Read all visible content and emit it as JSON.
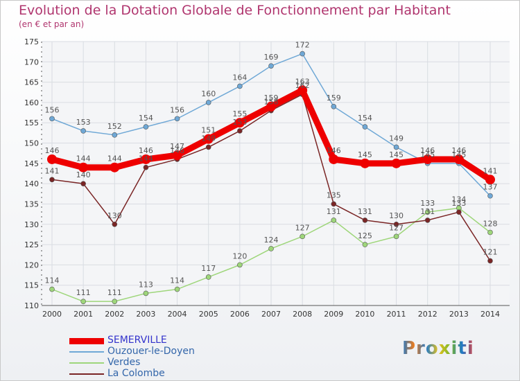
{
  "header": {
    "title": "Evolution de la Dotation Globale de Fonctionnement par Habitant",
    "subtitle": "(en € et par an)"
  },
  "logo": {
    "text": "Proxiti"
  },
  "chart_data": {
    "type": "line",
    "title": "Evolution de la Dotation Globale de Fonctionnement par Habitant",
    "subtitle": "(en € et par an)",
    "x": [
      2000,
      2001,
      2002,
      2003,
      2004,
      2005,
      2006,
      2007,
      2008,
      2009,
      2010,
      2011,
      2012,
      2013,
      2014
    ],
    "ylim": [
      110,
      175
    ],
    "yticks": [
      110,
      115,
      120,
      125,
      130,
      135,
      140,
      145,
      150,
      155,
      160,
      165,
      170,
      175
    ],
    "grid": true,
    "legend_position": "bottom-left",
    "series": [
      {
        "name": "SEMERVILLE",
        "color": "#ee0000",
        "label_color": "#3333cc",
        "values": [
          146,
          144,
          144,
          146,
          147,
          151,
          155,
          159,
          163,
          146,
          145,
          145,
          146,
          146,
          141
        ]
      },
      {
        "name": "Ouzouer-le-Doyen",
        "color": "#6fa8d6",
        "label_color": "#3366aa",
        "values": [
          156,
          153,
          152,
          154,
          156,
          160,
          164,
          169,
          172,
          159,
          154,
          149,
          145,
          145,
          137
        ]
      },
      {
        "name": "Verdes",
        "color": "#9ed67a",
        "label_color": "#3366aa",
        "values": [
          114,
          111,
          111,
          113,
          114,
          117,
          120,
          124,
          127,
          131,
          125,
          127,
          133,
          134,
          128
        ]
      },
      {
        "name": "La Colombe",
        "color": "#7a2525",
        "label_color": "#3366aa",
        "values": [
          141,
          140,
          130,
          144,
          146,
          149,
          153,
          158,
          162,
          135,
          131,
          130,
          131,
          133,
          121
        ]
      }
    ]
  }
}
